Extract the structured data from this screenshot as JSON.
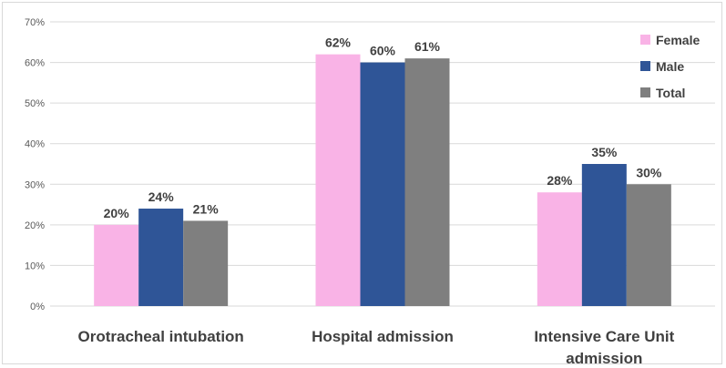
{
  "chart_data": {
    "type": "bar",
    "title": "",
    "xlabel": "",
    "ylabel": "",
    "ylim": [
      0,
      70
    ],
    "yticks": [
      0,
      10,
      20,
      30,
      40,
      50,
      60,
      70
    ],
    "ytick_labels": [
      "0%",
      "10%",
      "20%",
      "30%",
      "40%",
      "50%",
      "60%",
      "70%"
    ],
    "categories": [
      [
        "Orotracheal intubation"
      ],
      [
        "Hospital admission"
      ],
      [
        "Intensive Care Unit",
        "admission"
      ]
    ],
    "series": [
      {
        "name": "Female",
        "color": "#f9b3e6",
        "values": [
          20,
          62,
          28
        ],
        "labels": [
          "20%",
          "62%",
          "28%"
        ]
      },
      {
        "name": "Male",
        "color": "#2f5597",
        "values": [
          24,
          60,
          35
        ],
        "labels": [
          "24%",
          "60%",
          "35%"
        ]
      },
      {
        "name": "Total",
        "color": "#7f7f7f",
        "values": [
          21,
          61,
          30
        ],
        "labels": [
          "21%",
          "61%",
          "30%"
        ]
      }
    ],
    "grid": true,
    "gridline_color": "#d9d9d9",
    "legend_position": "top-right"
  }
}
